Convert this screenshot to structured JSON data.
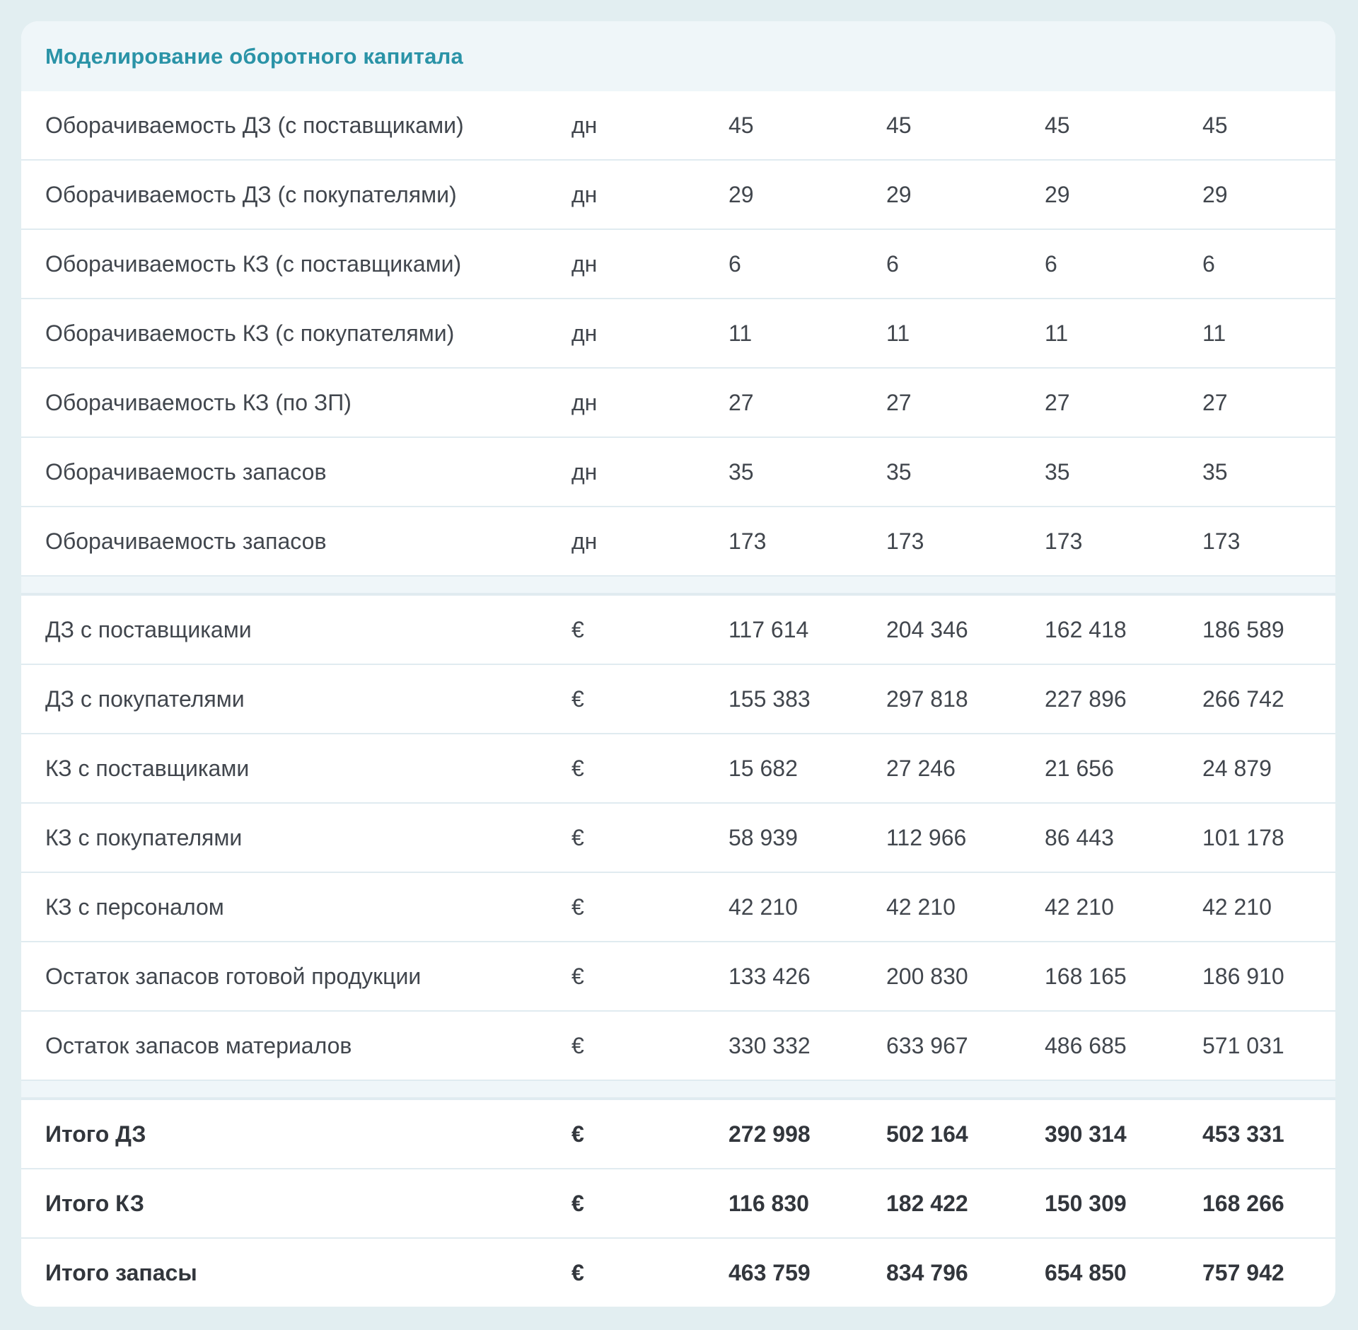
{
  "page": {
    "background_color": "#e2eef1"
  },
  "card": {
    "title": "Моделирование оборотного капитала",
    "title_color": "#2a93a7",
    "band_color": "#eff6f9",
    "divider_color": "#e0ebf0",
    "sections": [
      {
        "name": "turnover-days",
        "rows": [
          {
            "label": "Оборачиваемость ДЗ (с поставщиками)",
            "unit": "дн",
            "values": [
              "45",
              "45",
              "45",
              "45"
            ],
            "bold": false
          },
          {
            "label": "Оборачиваемость ДЗ (с покупателями)",
            "unit": "дн",
            "values": [
              "29",
              "29",
              "29",
              "29"
            ],
            "bold": false
          },
          {
            "label": "Оборачиваемость КЗ (с поставщиками)",
            "unit": "дн",
            "values": [
              "6",
              "6",
              "6",
              "6"
            ],
            "bold": false
          },
          {
            "label": "Оборачиваемость КЗ (с покупателями)",
            "unit": "дн",
            "values": [
              "11",
              "11",
              "11",
              "11"
            ],
            "bold": false
          },
          {
            "label": "Оборачиваемость КЗ (по ЗП)",
            "unit": "дн",
            "values": [
              "27",
              "27",
              "27",
              "27"
            ],
            "bold": false
          },
          {
            "label": "Оборачиваемость запасов",
            "unit": "дн",
            "values": [
              "35",
              "35",
              "35",
              "35"
            ],
            "bold": false
          },
          {
            "label": "Оборачиваемость запасов",
            "unit": "дн",
            "values": [
              "173",
              "173",
              "173",
              "173"
            ],
            "bold": false
          }
        ]
      },
      {
        "name": "amounts-eur",
        "rows": [
          {
            "label": "ДЗ с поставщиками",
            "unit": "€",
            "values": [
              "117 614",
              "204 346",
              "162 418",
              "186 589"
            ],
            "bold": false
          },
          {
            "label": "ДЗ с покупателями",
            "unit": "€",
            "values": [
              "155 383",
              "297 818",
              "227 896",
              "266 742"
            ],
            "bold": false
          },
          {
            "label": "КЗ с поставщиками",
            "unit": "€",
            "values": [
              "15 682",
              "27 246",
              "21 656",
              "24 879"
            ],
            "bold": false
          },
          {
            "label": "КЗ с покупателями",
            "unit": "€",
            "values": [
              "58 939",
              "112 966",
              "86 443",
              "101 178"
            ],
            "bold": false
          },
          {
            "label": "КЗ с персоналом",
            "unit": "€",
            "values": [
              "42 210",
              "42 210",
              "42 210",
              "42 210"
            ],
            "bold": false
          },
          {
            "label": "Остаток запасов готовой продукции",
            "unit": "€",
            "values": [
              "133 426",
              "200 830",
              "168 165",
              "186 910"
            ],
            "bold": false
          },
          {
            "label": "Остаток запасов материалов",
            "unit": "€",
            "values": [
              "330 332",
              "633 967",
              "486 685",
              "571 031"
            ],
            "bold": false
          }
        ]
      },
      {
        "name": "totals",
        "rows": [
          {
            "label": "Итого ДЗ",
            "unit": "€",
            "values": [
              "272 998",
              "502 164",
              "390 314",
              "453 331"
            ],
            "bold": true
          },
          {
            "label": "Итого КЗ",
            "unit": "€",
            "values": [
              "116 830",
              "182 422",
              "150 309",
              "168 266"
            ],
            "bold": true
          },
          {
            "label": "Итого запасы",
            "unit": "€",
            "values": [
              "463 759",
              "834 796",
              "654 850",
              "757 942"
            ],
            "bold": true
          }
        ]
      }
    ]
  }
}
